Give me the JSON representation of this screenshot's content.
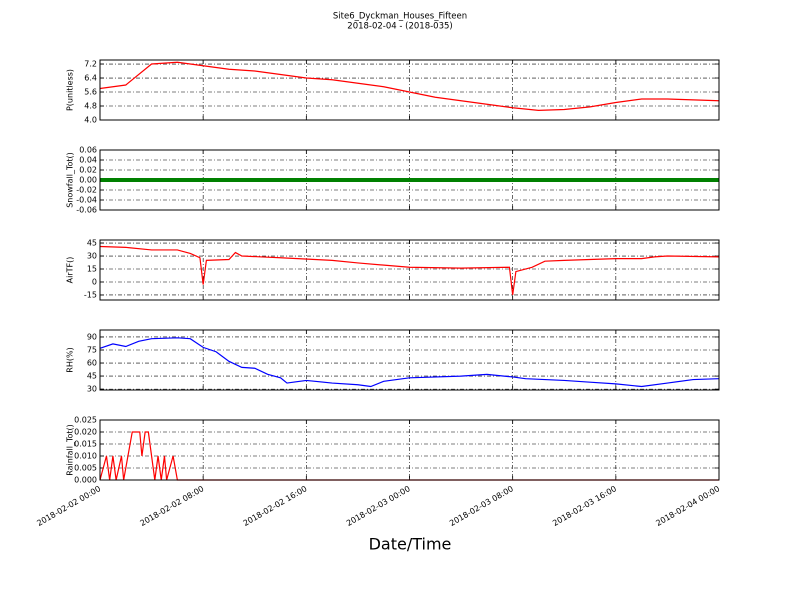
{
  "figure": {
    "title": "Site6_Dyckman_Houses_Fifteen",
    "subtitle": "2018-02-04 - (2018-035)"
  },
  "x_axis": {
    "label": "Date/Time",
    "xlim": [
      "2018-02-02 00:00",
      "2018-02-04 00:00"
    ],
    "xticks": [
      "2018-02-02 00:00",
      "2018-02-02 08:00",
      "2018-02-02 16:00",
      "2018-02-03 00:00",
      "2018-02-03 08:00",
      "2018-02-03 16:00",
      "2018-02-04 00:00"
    ],
    "grid": true
  },
  "chart_data": [
    {
      "type": "line",
      "ylabel": "P(unitless)",
      "ylim": [
        4.0,
        7.43
      ],
      "yticks": [
        {
          "value": 4.0,
          "label": "4.0"
        },
        4.8,
        5.6,
        6.4,
        7.2
      ],
      "grid": true,
      "x": [
        "2018-02-02 00:00",
        "2018-02-02 02:00",
        "2018-02-02 04:00",
        "2018-02-02 06:00",
        "2018-02-02 08:00",
        "2018-02-02 10:00",
        "2018-02-02 12:00",
        "2018-02-02 14:00",
        "2018-02-02 16:00",
        "2018-02-02 18:00",
        "2018-02-02 20:00",
        "2018-02-02 22:00",
        "2018-02-03 00:00",
        "2018-02-03 02:00",
        "2018-02-03 04:00",
        "2018-02-03 06:00",
        "2018-02-03 08:00",
        "2018-02-03 10:00",
        "2018-02-03 12:00",
        "2018-02-03 14:00",
        "2018-02-03 16:00",
        "2018-02-03 18:00",
        "2018-02-03 20:00",
        "2018-02-03 22:00",
        "2018-02-04 00:00"
      ],
      "series": [
        {
          "name": "P(unitless)",
          "color": "#ff0000",
          "values": [
            5.8,
            6.0,
            7.2,
            7.3,
            7.1,
            6.9,
            6.8,
            6.6,
            6.4,
            6.3,
            6.1,
            5.9,
            5.6,
            5.3,
            5.1,
            4.9,
            4.7,
            4.55,
            4.6,
            4.75,
            5.0,
            5.2,
            5.2,
            5.15,
            5.1
          ]
        }
      ]
    },
    {
      "type": "line",
      "ylabel": "Snowfall_Tot()",
      "ylim": [
        -0.06,
        0.06
      ],
      "yticks": [
        -0.06,
        -0.04,
        -0.02,
        {
          "value": 0,
          "label": "0.00"
        },
        0.02,
        0.04,
        0.06
      ],
      "grid": true,
      "x": [
        "2018-02-02 00:00",
        "2018-02-02 04:00",
        "2018-02-02 08:00",
        "2018-02-02 12:00",
        "2018-02-02 16:00",
        "2018-02-02 20:00",
        "2018-02-03 00:00",
        "2018-02-03 04:00",
        "2018-02-03 08:00",
        "2018-02-03 12:00",
        "2018-02-03 16:00",
        "2018-02-03 20:00",
        "2018-02-04 00:00"
      ],
      "series": [
        {
          "name": "Snowfall_Tot()",
          "color": "#008000",
          "values": [
            0,
            0,
            0,
            0,
            0,
            0,
            0,
            0,
            0,
            0,
            0,
            0,
            0
          ]
        }
      ]
    },
    {
      "type": "line",
      "ylabel": "AirTF()",
      "ylim": [
        -20.8,
        48.5
      ],
      "yticks": [
        -15,
        0,
        15,
        30,
        45
      ],
      "grid": true,
      "x": [
        "2018-02-02 00:00",
        "2018-02-02 02:00",
        "2018-02-02 04:00",
        "2018-02-02 06:00",
        "2018-02-02 07:00",
        "2018-02-02 07:45",
        "2018-02-02 08:00",
        "2018-02-02 08:15",
        "2018-02-02 10:00",
        "2018-02-02 10:30",
        "2018-02-02 11:00",
        "2018-02-02 14:00",
        "2018-02-02 18:00",
        "2018-02-02 20:00",
        "2018-02-03 00:00",
        "2018-02-03 04:00",
        "2018-02-03 07:45",
        "2018-02-03 08:00",
        "2018-02-03 08:15",
        "2018-02-03 09:30",
        "2018-02-03 10:30",
        "2018-02-03 12:00",
        "2018-02-03 16:00",
        "2018-02-03 18:00",
        "2018-02-03 19:00",
        "2018-02-03 20:00",
        "2018-02-04 00:00"
      ],
      "series": [
        {
          "name": "AirTF()",
          "color": "#ff0000",
          "values": [
            41,
            40,
            37,
            37,
            33,
            28,
            -3,
            25,
            26,
            34,
            30,
            28,
            25,
            22,
            17,
            16,
            17,
            -15,
            12,
            17,
            24,
            25,
            27,
            27,
            29,
            30,
            29
          ]
        }
      ]
    },
    {
      "type": "line",
      "ylabel": "RH(%)",
      "ylim": [
        29,
        98
      ],
      "yticks": [
        30,
        45,
        60,
        75,
        90
      ],
      "grid": true,
      "x": [
        "2018-02-02 00:00",
        "2018-02-02 01:00",
        "2018-02-02 02:00",
        "2018-02-02 03:00",
        "2018-02-02 04:00",
        "2018-02-02 06:00",
        "2018-02-02 07:00",
        "2018-02-02 08:00",
        "2018-02-02 09:00",
        "2018-02-02 10:00",
        "2018-02-02 11:00",
        "2018-02-02 12:00",
        "2018-02-02 13:00",
        "2018-02-02 14:00",
        "2018-02-02 14:30",
        "2018-02-02 16:00",
        "2018-02-02 18:00",
        "2018-02-02 20:00",
        "2018-02-02 21:00",
        "2018-02-02 22:00",
        "2018-02-03 00:00",
        "2018-02-03 04:00",
        "2018-02-03 06:00",
        "2018-02-03 08:00",
        "2018-02-03 09:00",
        "2018-02-03 12:00",
        "2018-02-03 14:00",
        "2018-02-03 16:00",
        "2018-02-03 18:00",
        "2018-02-03 20:00",
        "2018-02-03 22:00",
        "2018-02-04 00:00"
      ],
      "series": [
        {
          "name": "RH(%)",
          "color": "#0000ff",
          "values": [
            77,
            82,
            79,
            85,
            88,
            89,
            88,
            78,
            73,
            62,
            55,
            54,
            47,
            43,
            37,
            40,
            37,
            35,
            33,
            39,
            43,
            45,
            47,
            44,
            42,
            40,
            38,
            36,
            33,
            37,
            41,
            42
          ]
        }
      ]
    },
    {
      "type": "line",
      "ylabel": "Rainfall_Tot()",
      "ylim": [
        0,
        0.025
      ],
      "yticks": [
        {
          "value": 0,
          "label": "0.000"
        },
        0.005,
        {
          "value": 0.01,
          "label": "0.010"
        },
        0.015,
        {
          "value": 0.02,
          "label": "0.020"
        },
        0.025
      ],
      "grid": true,
      "x": [
        "2018-02-02 00:00",
        "2018-02-02 00:30",
        "2018-02-02 00:45",
        "2018-02-02 01:00",
        "2018-02-02 01:15",
        "2018-02-02 01:40",
        "2018-02-02 01:50",
        "2018-02-02 02:30",
        "2018-02-02 03:05",
        "2018-02-02 03:15",
        "2018-02-02 03:30",
        "2018-02-02 03:45",
        "2018-02-02 04:15",
        "2018-02-02 04:30",
        "2018-02-02 04:45",
        "2018-02-02 05:00",
        "2018-02-02 05:10",
        "2018-02-02 05:40",
        "2018-02-02 06:00",
        "2018-02-04 00:00"
      ],
      "series": [
        {
          "name": "Rainfall_Tot()",
          "color": "#ff0000",
          "values": [
            0,
            0.01,
            0,
            0.01,
            0,
            0.01,
            0,
            0.02,
            0.02,
            0.01,
            0.02,
            0.02,
            0,
            0.01,
            0,
            0.01,
            0,
            0.01,
            0,
            0
          ]
        }
      ]
    }
  ]
}
